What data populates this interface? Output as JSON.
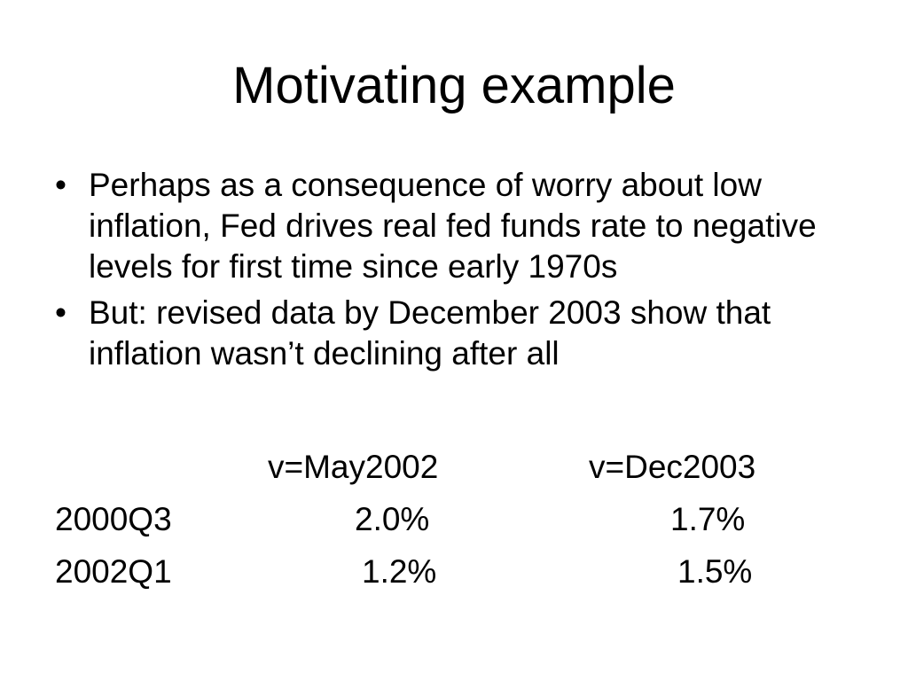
{
  "slide": {
    "title": "Motivating example",
    "bullets": [
      {
        "marker": "•",
        "text": "Perhaps as a consequence of worry about low inflation, Fed drives real fed funds rate to negative levels for first time since early 1970s"
      },
      {
        "marker": "•",
        "text": "But: revised data by December 2003 show that inflation wasn’t declining after all"
      }
    ],
    "table": {
      "headers": [
        "v=May2002",
        "v=Dec2003"
      ],
      "rows": [
        {
          "label": "2000Q3",
          "may2002": "2.0%",
          "dec2003": "1.7%"
        },
        {
          "label": "2002Q1",
          "may2002": "1.2%",
          "dec2003": "1.5%"
        }
      ]
    }
  }
}
